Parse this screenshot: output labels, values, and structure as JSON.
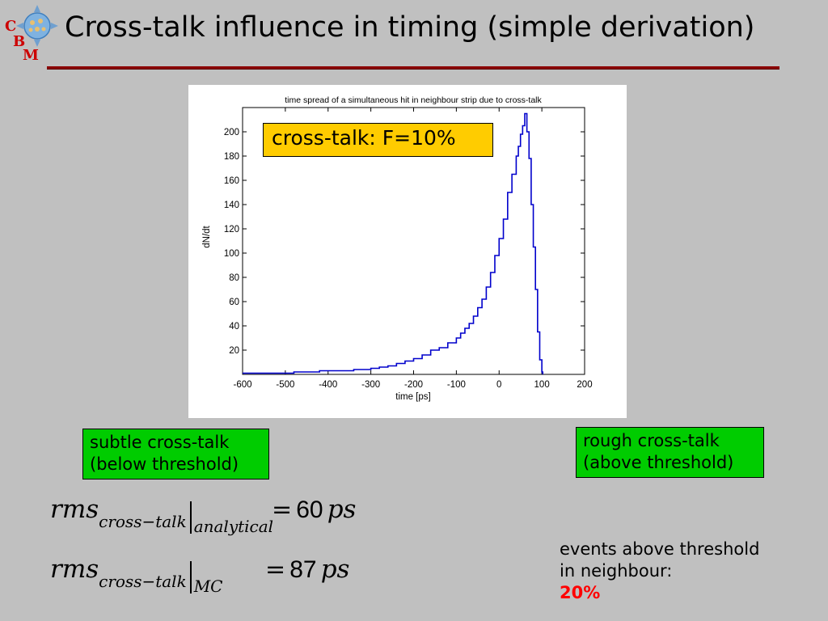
{
  "slide": {
    "title": "Cross-talk influence in timing (simple derivation)",
    "logo": {
      "letters": [
        "C",
        "B",
        "M"
      ],
      "icon": "cbm-logo-icon",
      "color": "#cc0000"
    }
  },
  "callout": {
    "text": "cross-talk: F=10%",
    "color": "#ffcc00"
  },
  "boxes": {
    "subtle": {
      "line1": "subtle cross-talk",
      "line2": "(below threshold)"
    },
    "rough": {
      "line1": "rough cross-talk",
      "line2": "(above threshold)"
    }
  },
  "formulas": {
    "analytical": {
      "lhs": "rms",
      "sub": "cross−talk",
      "eval": "analytical",
      "eq": "=",
      "value": "60",
      "unit": "ps"
    },
    "mc": {
      "lhs": "rms",
      "sub": "cross−talk",
      "eval": "MC",
      "eq": "=",
      "value": "87",
      "unit": "ps"
    }
  },
  "note": {
    "line1": "events above threshold",
    "line2_prefix": "in neighbour:",
    "highlight": "20%"
  },
  "chart_data": {
    "type": "line",
    "title": "time spread of a simultaneous hit in neighbour strip due to cross-talk",
    "xlabel": "time [ps]",
    "ylabel": "dN/dt",
    "xlim": [
      -600,
      200
    ],
    "ylim": [
      0,
      220
    ],
    "xticks": [
      -600,
      -500,
      -400,
      -300,
      -200,
      -100,
      0,
      100,
      200
    ],
    "yticks": [
      20,
      40,
      60,
      80,
      100,
      120,
      140,
      160,
      180,
      200
    ],
    "grid": false,
    "series": [
      {
        "color": "#0000cc",
        "x": [
          -600,
          -540,
          -480,
          -420,
          -380,
          -340,
          -300,
          -280,
          -260,
          -240,
          -220,
          -200,
          -180,
          -160,
          -140,
          -120,
          -100,
          -90,
          -80,
          -70,
          -60,
          -50,
          -40,
          -30,
          -20,
          -10,
          0,
          10,
          20,
          30,
          40,
          45,
          50,
          55,
          60,
          65,
          70,
          75,
          80,
          85,
          90,
          95,
          100,
          102
        ],
        "y": [
          1,
          1,
          2,
          3,
          3,
          4,
          5,
          6,
          7,
          9,
          11,
          13,
          16,
          20,
          22,
          26,
          30,
          34,
          38,
          42,
          48,
          55,
          62,
          72,
          84,
          98,
          112,
          128,
          150,
          165,
          180,
          188,
          198,
          205,
          215,
          200,
          178,
          140,
          105,
          70,
          35,
          12,
          2,
          0
        ]
      }
    ]
  }
}
